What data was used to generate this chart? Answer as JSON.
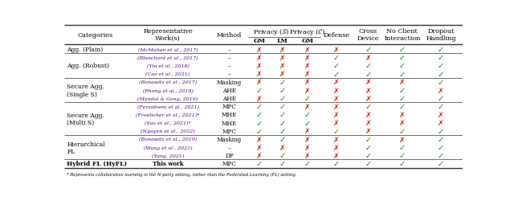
{
  "footnote": "* Represents collaborative learning in the N-party setting, rather than the Federated Learning (FL) setting.",
  "rows": [
    {
      "category": "Agg. (Plain)",
      "entries": [
        {
          "work": "(McMahan et al., 2017)",
          "method": "–",
          "vals": [
            "X",
            "X",
            "X",
            "X",
            "+",
            "+",
            "+"
          ]
        }
      ]
    },
    {
      "category": "Agg. (Robust)",
      "entries": [
        {
          "work": "(Blanchard et al., 2017)",
          "method": "–",
          "vals": [
            "X",
            "X",
            "X",
            "+",
            "X",
            "+",
            "+"
          ]
        },
        {
          "work": "(Yin et al., 2018)",
          "method": "–",
          "vals": [
            "X",
            "X",
            "X",
            "+",
            "+",
            "+",
            "+"
          ]
        },
        {
          "work": "(Cao et al., 2021)",
          "method": "–",
          "vals": [
            "X",
            "X",
            "X",
            "+",
            "+",
            "+",
            "+"
          ]
        }
      ]
    },
    {
      "category": "Secure Agg.\n(Single S)",
      "entries": [
        {
          "work": "(Bonawitz et al., 2017)",
          "method": "Masking",
          "vals": [
            "X",
            "+",
            "X",
            "X",
            "X",
            "X",
            "+"
          ]
        },
        {
          "work": "(Phong et al., 2018)",
          "method": "AHE",
          "vals": [
            "+",
            "+",
            "X",
            "X",
            "X",
            "+",
            "X"
          ]
        },
        {
          "work": "(Mandal & Gong, 2019)",
          "method": "AHE",
          "vals": [
            "X",
            "+",
            "+",
            "X",
            "X",
            "+",
            "+"
          ]
        }
      ]
    },
    {
      "category": "Secure Agg.\n(Multi S)",
      "entries": [
        {
          "work": "(Fereidooni et al., 2021)",
          "method": "MPC",
          "vals": [
            "+",
            "+",
            "X",
            "X",
            "+",
            "+",
            "+"
          ]
        },
        {
          "work": "(Froelicher et al., 2021)*",
          "method": "MHE",
          "vals": [
            "+",
            "+",
            "+",
            "X",
            "X",
            "X",
            "X"
          ]
        },
        {
          "work": "(Sav et al., 2021)*",
          "method": "MHE",
          "vals": [
            "+",
            "+",
            "+",
            "X",
            "X",
            "X",
            "X"
          ]
        },
        {
          "work": "(Nguyen et al., 2022)",
          "method": "MPC",
          "vals": [
            "+",
            "+",
            "X",
            "+",
            "X",
            "+",
            "+"
          ]
        }
      ]
    },
    {
      "category": "Hierarchical\nFL",
      "entries": [
        {
          "work": "(Bonawitz et al., 2019)",
          "method": "Masking",
          "vals": [
            "X",
            "+",
            "X",
            "X",
            "+",
            "X",
            "+"
          ]
        },
        {
          "work": "(Wang et al., 2021)",
          "method": "–",
          "vals": [
            "X",
            "X",
            "X",
            "X",
            "+",
            "+",
            "+"
          ]
        },
        {
          "work": "(Yang, 2021)",
          "method": "DP",
          "vals": [
            "X",
            "+",
            "X",
            "X",
            "+",
            "+",
            "+"
          ]
        }
      ]
    },
    {
      "category": "Hybrid FL (HyFL)",
      "entries": [
        {
          "work": "This work",
          "method": "MPC",
          "vals": [
            "+",
            "+",
            "+",
            "+",
            "+",
            "+",
            "+"
          ]
        }
      ]
    }
  ],
  "check_color": "#217821",
  "cross_color": "#cc2200",
  "work_color": "#4b0082",
  "bg_color": "#ffffff"
}
